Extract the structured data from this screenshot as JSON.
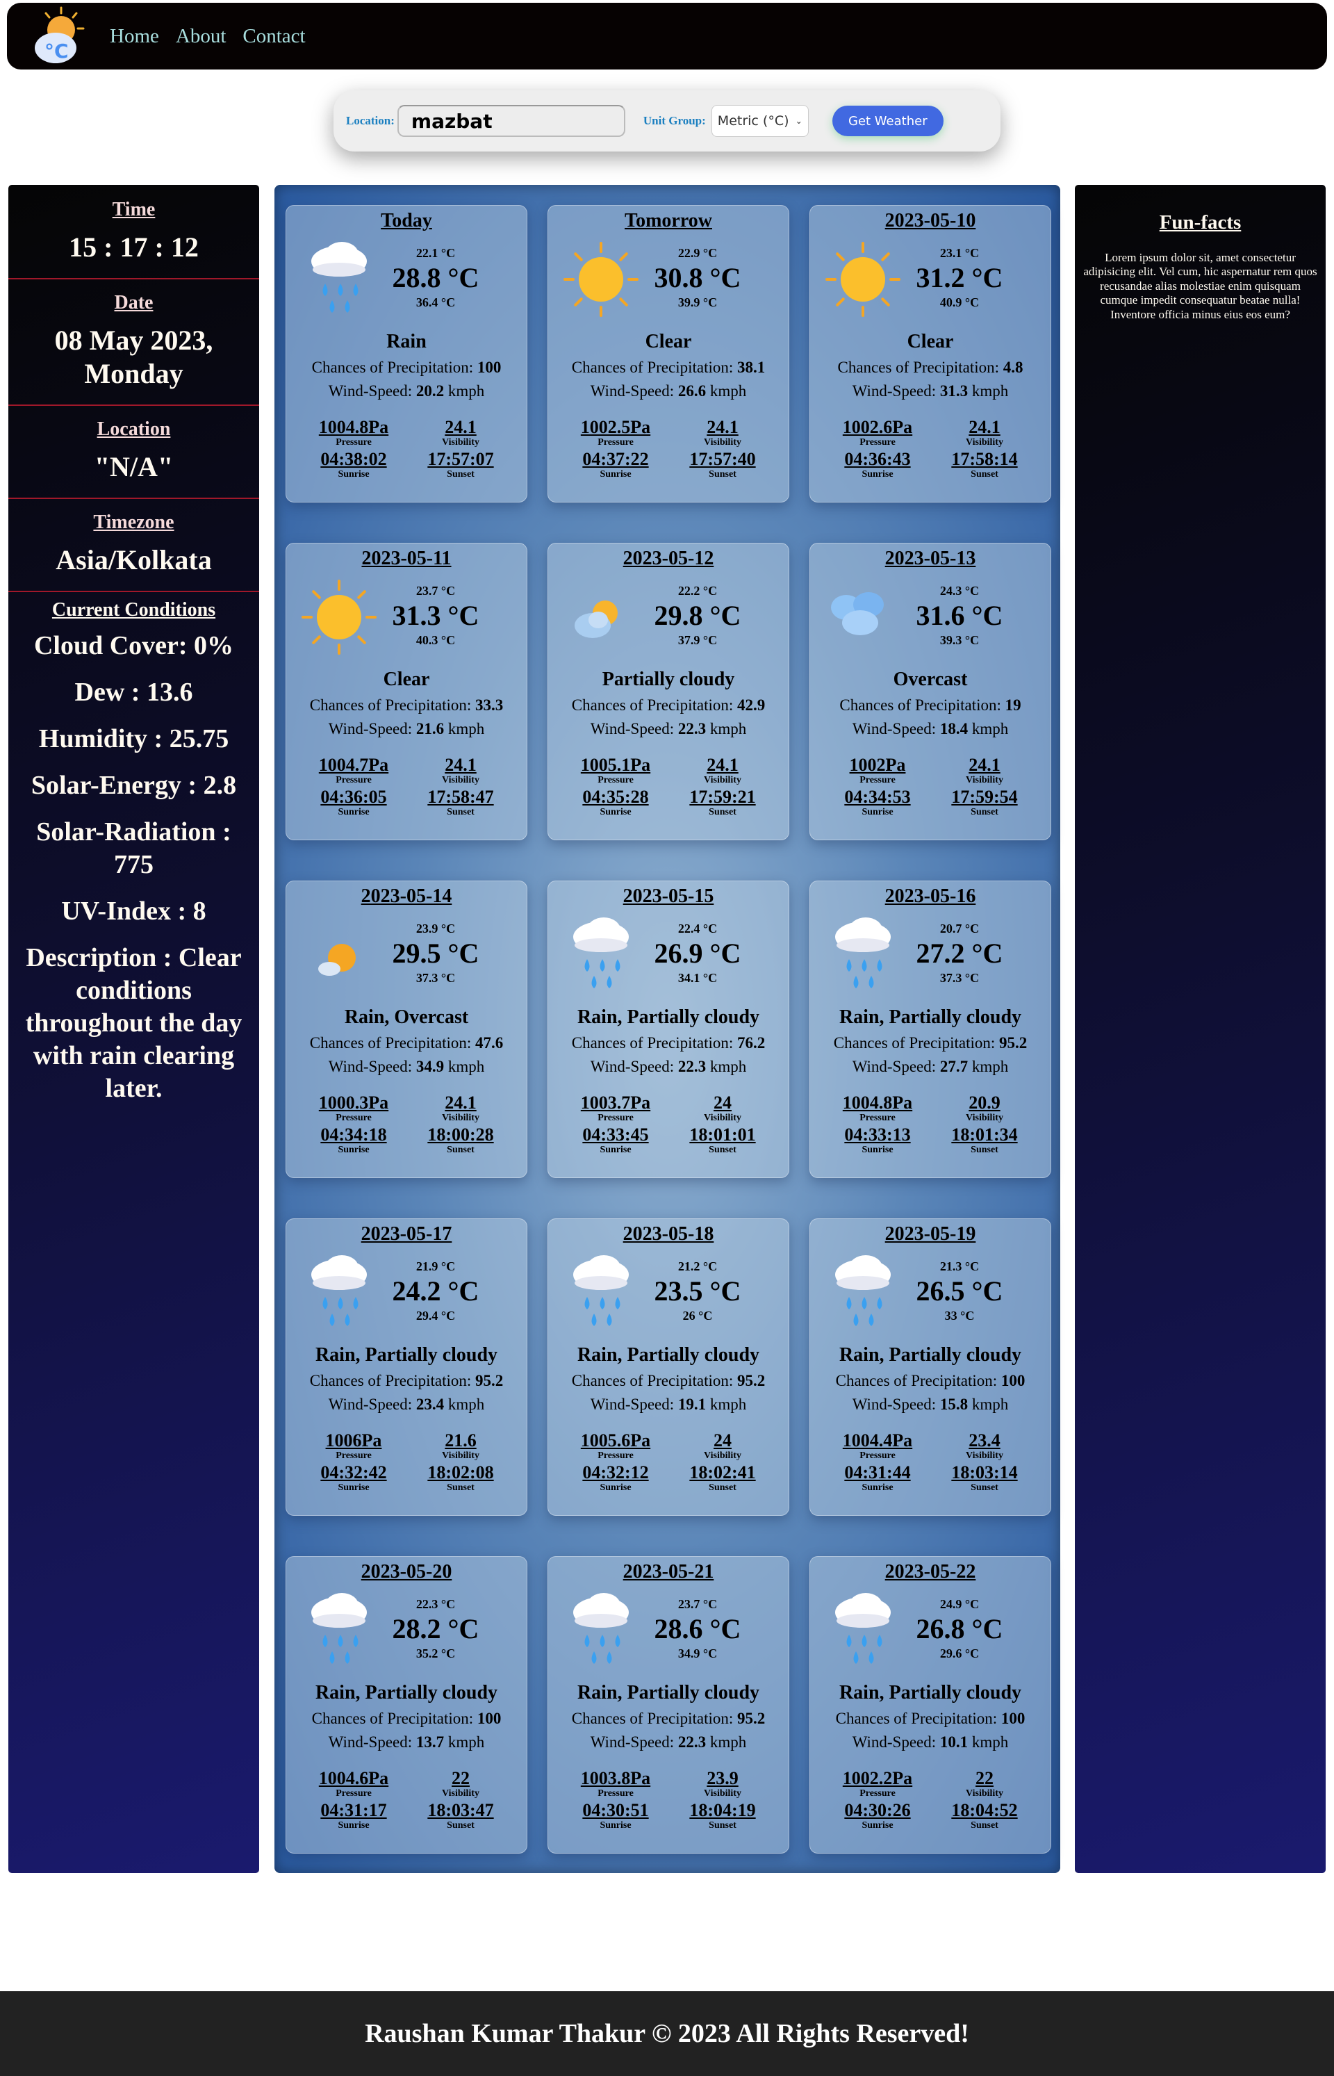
{
  "nav": {
    "links": [
      "Home",
      "About",
      "Contact"
    ]
  },
  "search": {
    "location_label": "Location:",
    "location_value": "mazbat",
    "unit_label": "Unit Group:",
    "unit_value": "Metric (°C)",
    "button_label": "Get Weather"
  },
  "left": {
    "time_label": "Time",
    "time": "15 : 17 : 12",
    "date_label": "Date",
    "date": "08 May 2023, Monday",
    "location_label": "Location",
    "location": "\"N/A\"",
    "timezone_label": "Timezone",
    "timezone": "Asia/Kolkata",
    "conditions_label": "Current Conditions",
    "conditions": [
      "Cloud Cover: 0%",
      "Dew : 13.6",
      "Humidity : 25.75",
      "Solar-Energy : 2.8",
      "Solar-Radiation : 775",
      "UV-Index : 8",
      "Description : Clear conditions throughout the day with rain clearing later."
    ]
  },
  "right": {
    "title": "Fun-facts",
    "text": "Lorem ipsum dolor sit, amet consectetur adipisicing elit. Vel cum, hic aspernatur rem quos recusandae alias molestiae enim quisquam cumque impedit consequatur beatae nulla! Inventore officia minus eius eos eum?"
  },
  "labels": {
    "precip": "Chances of Precipitation: ",
    "wind": "Wind-Speed: ",
    "wind_unit": " kmph",
    "pressure": "Pressure",
    "visibility": "Visibility",
    "sunrise": "Sunrise",
    "sunset": "Sunset"
  },
  "days": [
    {
      "date": "Today",
      "icon": "rain",
      "min": "22.1 °C",
      "temp": "28.8 °C",
      "max": "36.4 °C",
      "desc": "Rain",
      "precip": "100",
      "wind": "20.2",
      "pressure": "1004.8Pa",
      "visibility": "24.1",
      "sunrise": "04:38:02",
      "sunset": "17:57:07"
    },
    {
      "date": "Tomorrow",
      "icon": "clear",
      "min": "22.9 °C",
      "temp": "30.8 °C",
      "max": "39.9 °C",
      "desc": "Clear",
      "precip": "38.1",
      "wind": "26.6",
      "pressure": "1002.5Pa",
      "visibility": "24.1",
      "sunrise": "04:37:22",
      "sunset": "17:57:40"
    },
    {
      "date": "2023-05-10",
      "icon": "clear",
      "min": "23.1 °C",
      "temp": "31.2 °C",
      "max": "40.9 °C",
      "desc": "Clear",
      "precip": "4.8",
      "wind": "31.3",
      "pressure": "1002.6Pa",
      "visibility": "24.1",
      "sunrise": "04:36:43",
      "sunset": "17:58:14"
    },
    {
      "date": "2023-05-11",
      "icon": "clear",
      "min": "23.7 °C",
      "temp": "31.3 °C",
      "max": "40.3 °C",
      "desc": "Clear",
      "precip": "33.3",
      "wind": "21.6",
      "pressure": "1004.7Pa",
      "visibility": "24.1",
      "sunrise": "04:36:05",
      "sunset": "17:58:47"
    },
    {
      "date": "2023-05-12",
      "icon": "partly-cloudy",
      "min": "22.2 °C",
      "temp": "29.8 °C",
      "max": "37.9 °C",
      "desc": "Partially cloudy",
      "precip": "42.9",
      "wind": "22.3",
      "pressure": "1005.1Pa",
      "visibility": "24.1",
      "sunrise": "04:35:28",
      "sunset": "17:59:21"
    },
    {
      "date": "2023-05-13",
      "icon": "overcast",
      "min": "24.3 °C",
      "temp": "31.6 °C",
      "max": "39.3 °C",
      "desc": "Overcast",
      "precip": "19",
      "wind": "18.4",
      "pressure": "1002Pa",
      "visibility": "24.1",
      "sunrise": "04:34:53",
      "sunset": "17:59:54"
    },
    {
      "date": "2023-05-14",
      "icon": "sun-cloud",
      "min": "23.9 °C",
      "temp": "29.5 °C",
      "max": "37.3 °C",
      "desc": "Rain, Overcast",
      "precip": "47.6",
      "wind": "34.9",
      "pressure": "1000.3Pa",
      "visibility": "24.1",
      "sunrise": "04:34:18",
      "sunset": "18:00:28"
    },
    {
      "date": "2023-05-15",
      "icon": "rain",
      "min": "22.4 °C",
      "temp": "26.9 °C",
      "max": "34.1 °C",
      "desc": "Rain, Partially cloudy",
      "precip": "76.2",
      "wind": "22.3",
      "pressure": "1003.7Pa",
      "visibility": "24",
      "sunrise": "04:33:45",
      "sunset": "18:01:01"
    },
    {
      "date": "2023-05-16",
      "icon": "rain",
      "min": "20.7 °C",
      "temp": "27.2 °C",
      "max": "37.3 °C",
      "desc": "Rain, Partially cloudy",
      "precip": "95.2",
      "wind": "27.7",
      "pressure": "1004.8Pa",
      "visibility": "20.9",
      "sunrise": "04:33:13",
      "sunset": "18:01:34"
    },
    {
      "date": "2023-05-17",
      "icon": "rain",
      "min": "21.9 °C",
      "temp": "24.2 °C",
      "max": "29.4 °C",
      "desc": "Rain, Partially cloudy",
      "precip": "95.2",
      "wind": "23.4",
      "pressure": "1006Pa",
      "visibility": "21.6",
      "sunrise": "04:32:42",
      "sunset": "18:02:08"
    },
    {
      "date": "2023-05-18",
      "icon": "rain",
      "min": "21.2 °C",
      "temp": "23.5 °C",
      "max": "26 °C",
      "desc": "Rain, Partially cloudy",
      "precip": "95.2",
      "wind": "19.1",
      "pressure": "1005.6Pa",
      "visibility": "24",
      "sunrise": "04:32:12",
      "sunset": "18:02:41"
    },
    {
      "date": "2023-05-19",
      "icon": "rain",
      "min": "21.3 °C",
      "temp": "26.5 °C",
      "max": "33 °C",
      "desc": "Rain, Partially cloudy",
      "precip": "100",
      "wind": "15.8",
      "pressure": "1004.4Pa",
      "visibility": "23.4",
      "sunrise": "04:31:44",
      "sunset": "18:03:14"
    },
    {
      "date": "2023-05-20",
      "icon": "rain",
      "min": "22.3 °C",
      "temp": "28.2 °C",
      "max": "35.2 °C",
      "desc": "Rain, Partially cloudy",
      "precip": "100",
      "wind": "13.7",
      "pressure": "1004.6Pa",
      "visibility": "22",
      "sunrise": "04:31:17",
      "sunset": "18:03:47"
    },
    {
      "date": "2023-05-21",
      "icon": "rain",
      "min": "23.7 °C",
      "temp": "28.6 °C",
      "max": "34.9 °C",
      "desc": "Rain, Partially cloudy",
      "precip": "95.2",
      "wind": "22.3",
      "pressure": "1003.8Pa",
      "visibility": "23.9",
      "sunrise": "04:30:51",
      "sunset": "18:04:19"
    },
    {
      "date": "2023-05-22",
      "icon": "rain",
      "min": "24.9 °C",
      "temp": "26.8 °C",
      "max": "29.6 °C",
      "desc": "Rain, Partially cloudy",
      "precip": "100",
      "wind": "10.1",
      "pressure": "1002.2Pa",
      "visibility": "22",
      "sunrise": "04:30:26",
      "sunset": "18:04:52"
    }
  ],
  "footer": {
    "text": "Raushan Kumar Thakur © 2023 All Rights Reserved!"
  },
  "colors": {
    "navbar": "#060202",
    "button": "#4169e1",
    "label": "#1a7fc0",
    "divider": "#a0182a",
    "footer": "#222222"
  }
}
